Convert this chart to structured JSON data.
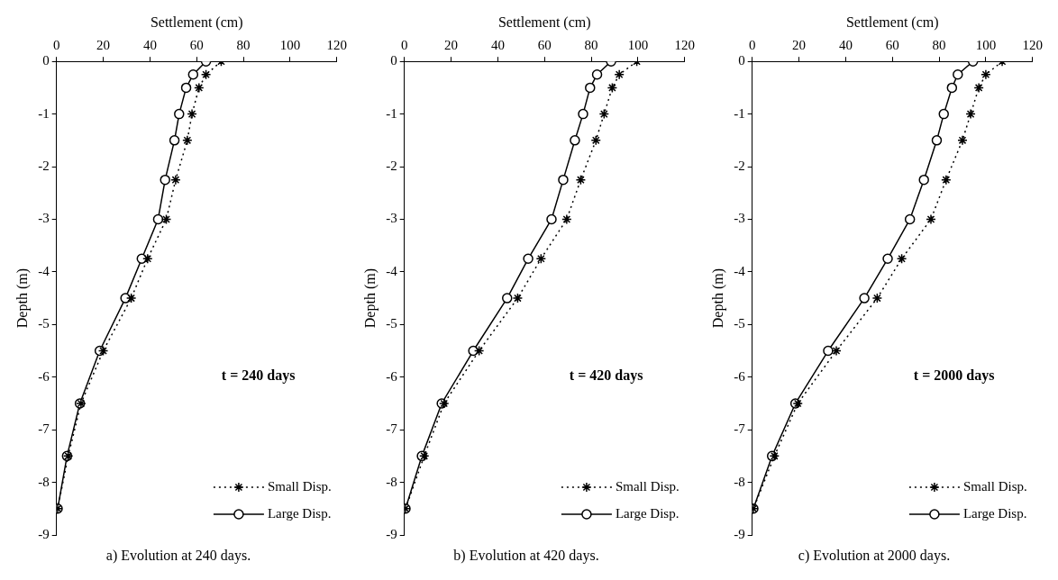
{
  "chart_data": [
    {
      "type": "line",
      "xlabel": "Settlement (cm)",
      "ylabel": "Depth (m)",
      "xlim": [
        0,
        120
      ],
      "xticks": [
        0,
        20,
        40,
        60,
        80,
        100,
        120
      ],
      "ylim": [
        -9,
        0
      ],
      "yticks": [
        -9,
        -8,
        -7,
        -6,
        -5,
        -4,
        -3,
        -2,
        -1,
        0
      ],
      "grid": false,
      "legend": "bottom right",
      "annotations": [
        "t = 240 days",
        "a) Evolution at 240 days."
      ],
      "series": [
        {
          "name": "Small Disp.",
          "color": "#000000",
          "marker": "cross",
          "line_style": "dotted",
          "x": [
            70.5,
            64,
            61,
            58,
            56,
            51,
            47,
            39,
            32,
            20,
            10.5,
            5,
            0.5
          ],
          "values": [
            0,
            -0.25,
            -0.5,
            -1,
            -1.5,
            -2.25,
            -3,
            -3.75,
            -4.5,
            -5.5,
            -6.5,
            -7.5,
            -8.5
          ]
        },
        {
          "name": "Large Disp.",
          "color": "#000000",
          "marker": "circle",
          "line_style": "solid",
          "x": [
            64,
            58.5,
            55.5,
            52.5,
            50.5,
            46.5,
            43.5,
            36.5,
            29.5,
            18.5,
            10,
            4.5,
            0.5
          ],
          "values": [
            0,
            -0.25,
            -0.5,
            -1,
            -1.5,
            -2.25,
            -3,
            -3.75,
            -4.5,
            -5.5,
            -6.5,
            -7.5,
            -8.5
          ]
        }
      ]
    },
    {
      "type": "line",
      "xlabel": "Settlement (cm)",
      "ylabel": "Depth (m)",
      "xlim": [
        0,
        120
      ],
      "xticks": [
        0,
        20,
        40,
        60,
        80,
        100,
        120
      ],
      "ylim": [
        -9,
        0
      ],
      "yticks": [
        -9,
        -8,
        -7,
        -6,
        -5,
        -4,
        -3,
        -2,
        -1,
        0
      ],
      "grid": false,
      "legend": "bottom right",
      "annotations": [
        "t = 420 days",
        "b) Evolution at 420 days."
      ],
      "series": [
        {
          "name": "Small Disp.",
          "color": "#000000",
          "marker": "cross",
          "line_style": "dotted",
          "x": [
            99.5,
            92,
            89,
            85.5,
            82,
            75.5,
            69.5,
            58.5,
            48.5,
            32,
            17,
            8.5,
            0.5
          ],
          "values": [
            0,
            -0.25,
            -0.5,
            -1,
            -1.5,
            -2.25,
            -3,
            -3.75,
            -4.5,
            -5.5,
            -6.5,
            -7.5,
            -8.5
          ]
        },
        {
          "name": "Large Disp.",
          "color": "#000000",
          "marker": "circle",
          "line_style": "solid",
          "x": [
            88.5,
            82.5,
            79.5,
            76.5,
            73,
            68,
            63,
            53,
            44,
            29.5,
            16,
            7.5,
            0.5
          ],
          "values": [
            0,
            -0.25,
            -0.5,
            -1,
            -1.5,
            -2.25,
            -3,
            -3.75,
            -4.5,
            -5.5,
            -6.5,
            -7.5,
            -8.5
          ]
        }
      ]
    },
    {
      "type": "line",
      "xlabel": "Settlement (cm)",
      "ylabel": "Depth (m)",
      "xlim": [
        0,
        120
      ],
      "xticks": [
        0,
        20,
        40,
        60,
        80,
        100,
        120
      ],
      "ylim": [
        -9,
        0
      ],
      "yticks": [
        -9,
        -8,
        -7,
        -6,
        -5,
        -4,
        -3,
        -2,
        -1,
        0
      ],
      "grid": false,
      "legend": "bottom right",
      "annotations": [
        "t = 2000 days",
        "c) Evolution at 2000 days."
      ],
      "series": [
        {
          "name": "Small Disp.",
          "color": "#000000",
          "marker": "cross",
          "line_style": "dotted",
          "x": [
            107,
            100,
            97,
            93.5,
            90,
            83,
            76.5,
            64,
            53.5,
            36,
            19.5,
            9.5,
            0.5
          ],
          "values": [
            0,
            -0.25,
            -0.5,
            -1,
            -1.5,
            -2.25,
            -3,
            -3.75,
            -4.5,
            -5.5,
            -6.5,
            -7.5,
            -8.5
          ]
        },
        {
          "name": "Large Disp.",
          "color": "#000000",
          "marker": "circle",
          "line_style": "solid",
          "x": [
            94.5,
            88,
            85.5,
            82,
            79,
            73.5,
            67.5,
            58,
            48,
            32.5,
            18.5,
            8.5,
            0.5
          ],
          "values": [
            0,
            -0.25,
            -0.5,
            -1,
            -1.5,
            -2.25,
            -3,
            -3.75,
            -4.5,
            -5.5,
            -6.5,
            -7.5,
            -8.5
          ]
        }
      ]
    }
  ]
}
